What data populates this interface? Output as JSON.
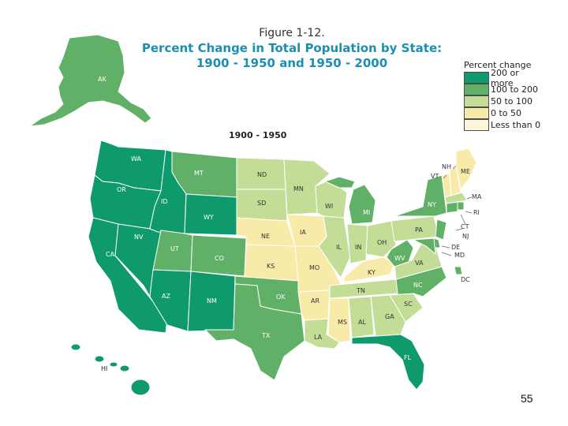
{
  "figure_label": "Figure 1-12.",
  "title_line1": "Percent Change in Total Population by State:",
  "title_line2": "1900 - 1950 and 1950 - 2000",
  "map_subtitle": "1900 - 1950",
  "legend": {
    "title": "Percent change",
    "items": [
      {
        "key": "c200",
        "label": "200 or more",
        "color": "#0e9a6c"
      },
      {
        "key": "c100",
        "label": "100 to 200",
        "color": "#61b068"
      },
      {
        "key": "c50",
        "label": "50 to 100",
        "color": "#c3dc96"
      },
      {
        "key": "c0",
        "label": "0 to 50",
        "color": "#f8ebaa"
      },
      {
        "key": "neg",
        "label": "Less than 0",
        "color": "#fdf6d8"
      }
    ]
  },
  "states": {
    "AK": "c100",
    "HI": "c200",
    "WA": "c200",
    "OR": "c200",
    "CA": "c200",
    "ID": "c200",
    "NV": "c200",
    "AZ": "c200",
    "NM": "c200",
    "WY": "c200",
    "MT": "c100",
    "UT": "c100",
    "CO": "c100",
    "TX": "c100",
    "OK": "c100",
    "FL": "c200",
    "MI": "c100",
    "NY": "c100",
    "NC": "c100",
    "WV": "c100",
    "NJ": "c100",
    "CT": "c100",
    "DE": "c100",
    "RI": "c100",
    "MD": "c100",
    "DC": "c100",
    "ND": "c50",
    "SD": "c50",
    "MN": "c50",
    "WI": "c50",
    "IL": "c50",
    "IN": "c50",
    "OH": "c50",
    "PA": "c50",
    "VA": "c50",
    "SC": "c50",
    "GA": "c50",
    "AL": "c50",
    "LA": "c50",
    "TN": "c50",
    "MA": "c50",
    "NE": "c0",
    "KS": "c0",
    "IA": "c0",
    "MO": "c0",
    "AR": "c0",
    "MS": "c0",
    "KY": "c0",
    "VT": "c0",
    "NH": "c0",
    "ME": "c0"
  },
  "page_number": "55"
}
